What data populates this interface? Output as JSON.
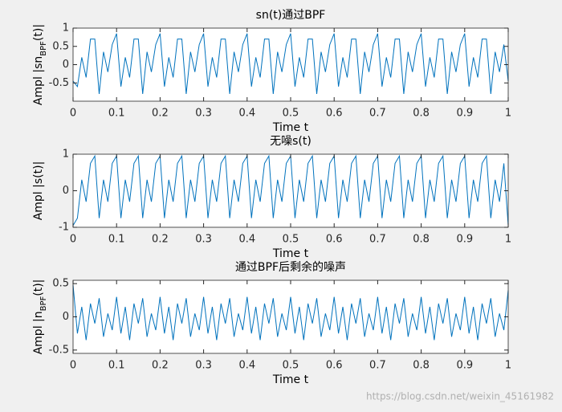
{
  "chart_data": [
    {
      "type": "line",
      "title": "sn(t)通过BPF",
      "xlabel": "Time t",
      "ylabel": [
        "Ampl |sn",
        "BPF",
        "(t)|"
      ],
      "x": [
        0,
        0.01,
        0.02,
        0.03,
        0.04,
        0.05,
        0.06,
        0.07,
        0.08,
        0.09,
        0.1,
        0.11,
        0.12,
        0.13,
        0.14,
        0.15,
        0.16,
        0.17,
        0.18,
        0.19,
        0.2,
        0.21,
        0.22,
        0.23,
        0.24,
        0.25,
        0.26,
        0.27,
        0.28,
        0.29,
        0.3,
        0.31,
        0.32,
        0.33,
        0.34,
        0.35,
        0.36,
        0.37,
        0.38,
        0.39,
        0.4,
        0.41,
        0.42,
        0.43,
        0.44,
        0.45,
        0.46,
        0.47,
        0.48,
        0.49,
        0.5,
        0.51,
        0.52,
        0.53,
        0.54,
        0.55,
        0.56,
        0.57,
        0.58,
        0.59,
        0.6,
        0.61,
        0.62,
        0.63,
        0.64,
        0.65,
        0.66,
        0.67,
        0.68,
        0.69,
        0.7,
        0.71,
        0.72,
        0.73,
        0.74,
        0.75,
        0.76,
        0.77,
        0.78,
        0.79,
        0.8,
        0.81,
        0.82,
        0.83,
        0.84,
        0.85,
        0.86,
        0.87,
        0.88,
        0.89,
        0.9,
        0.91,
        0.92,
        0.93,
        0.94,
        0.95,
        0.96,
        0.97,
        0.98,
        0.99,
        1
      ],
      "series": [
        {
          "color": "#0072bd",
          "values": [
            -0.45,
            -0.6,
            0.2,
            -0.35,
            0.7,
            0.7,
            -0.8,
            0.35,
            -0.2,
            0.55,
            0.85,
            -0.6,
            0.2,
            -0.35,
            0.7,
            0.7,
            -0.8,
            0.35,
            -0.2,
            0.55,
            0.85,
            -0.6,
            0.2,
            -0.35,
            0.7,
            0.7,
            -0.8,
            0.35,
            -0.2,
            0.55,
            0.85,
            -0.6,
            0.2,
            -0.35,
            0.7,
            0.7,
            -0.8,
            0.35,
            -0.2,
            0.55,
            0.85,
            -0.6,
            0.2,
            -0.35,
            0.7,
            0.7,
            -0.8,
            0.35,
            -0.2,
            0.55,
            0.85,
            -0.6,
            0.2,
            -0.35,
            0.7,
            0.7,
            -0.8,
            0.35,
            -0.2,
            0.55,
            0.85,
            -0.6,
            0.2,
            -0.35,
            0.7,
            0.7,
            -0.8,
            0.35,
            -0.2,
            0.55,
            0.85,
            -0.6,
            0.2,
            -0.35,
            0.7,
            0.7,
            -0.8,
            0.35,
            -0.2,
            0.55,
            0.85,
            -0.6,
            0.2,
            -0.35,
            0.7,
            0.7,
            -0.8,
            0.35,
            -0.2,
            0.55,
            0.85,
            -0.6,
            0.2,
            -0.35,
            0.7,
            0.7,
            -0.8,
            0.35,
            -0.2,
            0.55,
            -0.45
          ]
        }
      ],
      "xlim": [
        0,
        1
      ],
      "xticks": [
        0,
        0.1,
        0.2,
        0.3,
        0.4,
        0.5,
        0.6,
        0.7,
        0.8,
        0.9,
        1
      ],
      "ylim": [
        -1,
        1
      ],
      "yticks": [
        -0.5,
        0,
        0.5,
        1
      ]
    },
    {
      "type": "line",
      "title": "无噪s(t)",
      "xlabel": "Time t",
      "ylabel": [
        "Ampl |s(t)|"
      ],
      "x": [
        0,
        0.01,
        0.02,
        0.03,
        0.04,
        0.05,
        0.06,
        0.07,
        0.08,
        0.09,
        0.1,
        0.11,
        0.12,
        0.13,
        0.14,
        0.15,
        0.16,
        0.17,
        0.18,
        0.19,
        0.2,
        0.21,
        0.22,
        0.23,
        0.24,
        0.25,
        0.26,
        0.27,
        0.28,
        0.29,
        0.3,
        0.31,
        0.32,
        0.33,
        0.34,
        0.35,
        0.36,
        0.37,
        0.38,
        0.39,
        0.4,
        0.41,
        0.42,
        0.43,
        0.44,
        0.45,
        0.46,
        0.47,
        0.48,
        0.49,
        0.5,
        0.51,
        0.52,
        0.53,
        0.54,
        0.55,
        0.56,
        0.57,
        0.58,
        0.59,
        0.6,
        0.61,
        0.62,
        0.63,
        0.64,
        0.65,
        0.66,
        0.67,
        0.68,
        0.69,
        0.7,
        0.71,
        0.72,
        0.73,
        0.74,
        0.75,
        0.76,
        0.77,
        0.78,
        0.79,
        0.8,
        0.81,
        0.82,
        0.83,
        0.84,
        0.85,
        0.86,
        0.87,
        0.88,
        0.89,
        0.9,
        0.91,
        0.92,
        0.93,
        0.94,
        0.95,
        0.96,
        0.97,
        0.98,
        0.99,
        1
      ],
      "series": [
        {
          "color": "#0072bd",
          "values": [
            -0.95,
            -0.75,
            0.3,
            -0.3,
            0.75,
            0.95,
            -0.75,
            0.3,
            -0.3,
            0.75,
            0.95,
            -0.75,
            0.3,
            -0.3,
            0.75,
            0.95,
            -0.75,
            0.3,
            -0.3,
            0.75,
            0.95,
            -0.75,
            0.3,
            -0.3,
            0.75,
            0.95,
            -0.75,
            0.3,
            -0.3,
            0.75,
            0.95,
            -0.75,
            0.3,
            -0.3,
            0.75,
            0.95,
            -0.75,
            0.3,
            -0.3,
            0.75,
            0.95,
            -0.75,
            0.3,
            -0.3,
            0.75,
            0.95,
            -0.75,
            0.3,
            -0.3,
            0.75,
            0.95,
            -0.75,
            0.3,
            -0.3,
            0.75,
            0.95,
            -0.75,
            0.3,
            -0.3,
            0.75,
            0.95,
            -0.75,
            0.3,
            -0.3,
            0.75,
            0.95,
            -0.75,
            0.3,
            -0.3,
            0.75,
            0.95,
            -0.75,
            0.3,
            -0.3,
            0.75,
            0.95,
            -0.75,
            0.3,
            -0.3,
            0.75,
            0.95,
            -0.75,
            0.3,
            -0.3,
            0.75,
            0.95,
            -0.75,
            0.3,
            -0.3,
            0.75,
            0.95,
            -0.75,
            0.3,
            -0.3,
            0.75,
            0.95,
            -0.75,
            0.3,
            -0.3,
            0.75,
            -0.95
          ]
        }
      ],
      "xlim": [
        0,
        1
      ],
      "xticks": [
        0,
        0.1,
        0.2,
        0.3,
        0.4,
        0.5,
        0.6,
        0.7,
        0.8,
        0.9,
        1
      ],
      "ylim": [
        -1,
        1
      ],
      "yticks": [
        -1,
        0,
        1
      ]
    },
    {
      "type": "line",
      "title": "通过BPF后剩余的噪声",
      "xlabel": "Time t",
      "ylabel": [
        "Ampl |n",
        "BPF",
        "(t)|"
      ],
      "x": [
        0,
        0.01,
        0.02,
        0.03,
        0.04,
        0.05,
        0.06,
        0.07,
        0.08,
        0.09,
        0.1,
        0.11,
        0.12,
        0.13,
        0.14,
        0.15,
        0.16,
        0.17,
        0.18,
        0.19,
        0.2,
        0.21,
        0.22,
        0.23,
        0.24,
        0.25,
        0.26,
        0.27,
        0.28,
        0.29,
        0.3,
        0.31,
        0.32,
        0.33,
        0.34,
        0.35,
        0.36,
        0.37,
        0.38,
        0.39,
        0.4,
        0.41,
        0.42,
        0.43,
        0.44,
        0.45,
        0.46,
        0.47,
        0.48,
        0.49,
        0.5,
        0.51,
        0.52,
        0.53,
        0.54,
        0.55,
        0.56,
        0.57,
        0.58,
        0.59,
        0.6,
        0.61,
        0.62,
        0.63,
        0.64,
        0.65,
        0.66,
        0.67,
        0.68,
        0.69,
        0.7,
        0.71,
        0.72,
        0.73,
        0.74,
        0.75,
        0.76,
        0.77,
        0.78,
        0.79,
        0.8,
        0.81,
        0.82,
        0.83,
        0.84,
        0.85,
        0.86,
        0.87,
        0.88,
        0.89,
        0.9,
        0.91,
        0.92,
        0.93,
        0.94,
        0.95,
        0.96,
        0.97,
        0.98,
        0.99,
        1
      ],
      "series": [
        {
          "color": "#0072bd",
          "values": [
            0.48,
            -0.25,
            0.15,
            -0.35,
            0.2,
            -0.1,
            0.28,
            -0.3,
            0.05,
            -0.2,
            0.3,
            -0.25,
            0.15,
            -0.35,
            0.2,
            -0.1,
            0.28,
            -0.3,
            0.05,
            -0.2,
            0.3,
            -0.25,
            0.15,
            -0.35,
            0.2,
            -0.1,
            0.28,
            -0.3,
            0.05,
            -0.2,
            0.3,
            -0.25,
            0.15,
            -0.35,
            0.2,
            -0.1,
            0.28,
            -0.3,
            0.05,
            -0.2,
            0.3,
            -0.25,
            0.15,
            -0.35,
            0.2,
            -0.1,
            0.28,
            -0.3,
            0.05,
            -0.2,
            0.3,
            -0.25,
            0.15,
            -0.35,
            0.2,
            -0.1,
            0.28,
            -0.3,
            0.05,
            -0.2,
            0.3,
            -0.25,
            0.15,
            -0.35,
            0.2,
            -0.1,
            0.28,
            -0.3,
            0.05,
            -0.2,
            0.3,
            -0.25,
            0.15,
            -0.35,
            0.2,
            -0.1,
            0.28,
            -0.3,
            0.05,
            -0.2,
            0.3,
            -0.25,
            0.15,
            -0.35,
            0.2,
            -0.1,
            0.28,
            -0.3,
            0.05,
            -0.2,
            0.3,
            -0.25,
            0.15,
            -0.35,
            0.2,
            -0.1,
            0.28,
            -0.3,
            0.05,
            -0.2,
            0.4
          ]
        }
      ],
      "xlim": [
        0,
        1
      ],
      "xticks": [
        0,
        0.1,
        0.2,
        0.3,
        0.4,
        0.5,
        0.6,
        0.7,
        0.8,
        0.9,
        1
      ],
      "ylim": [
        -0.55,
        0.55
      ],
      "yticks": [
        -0.5,
        0,
        0.5
      ]
    }
  ],
  "watermark": "https://blog.csdn.net/weixin_45161982"
}
